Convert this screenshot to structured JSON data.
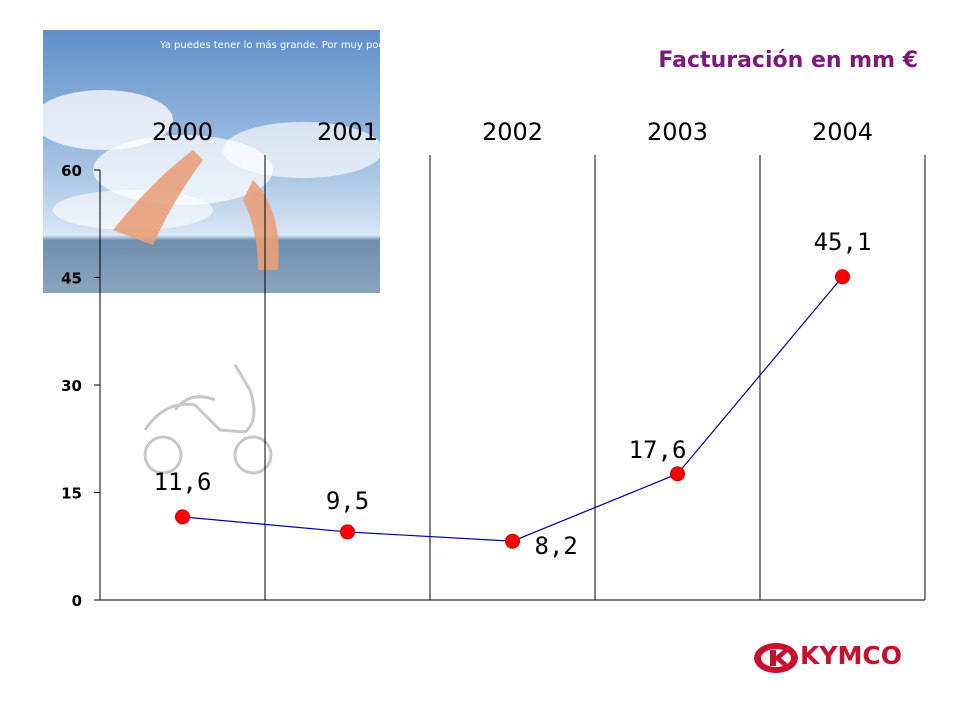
{
  "slide": {
    "promo_text": "Ya puedes tener lo más grande. Por muy poco",
    "brand": "KYMCO",
    "colors": {
      "title": "#7a1a7a",
      "line": "#0000a0",
      "marker": "#ff0000",
      "brand": "#c8102e"
    }
  },
  "chart_data": {
    "type": "line",
    "title": "Facturación en mm €",
    "categories": [
      "2000",
      "2001",
      "2002",
      "2003",
      "2004"
    ],
    "values": [
      11.6,
      9.5,
      8.2,
      17.6,
      45.1
    ],
    "value_labels": [
      "11,6",
      "9,5",
      "8,2",
      "17,6",
      "45,1"
    ],
    "yticks": [
      "0",
      "15",
      "30",
      "45",
      "60"
    ],
    "ylim": [
      0,
      60
    ],
    "xlabel": "",
    "ylabel": "",
    "category_axis_position": "top",
    "grid": "vertical separators between categories",
    "legend": "none"
  }
}
